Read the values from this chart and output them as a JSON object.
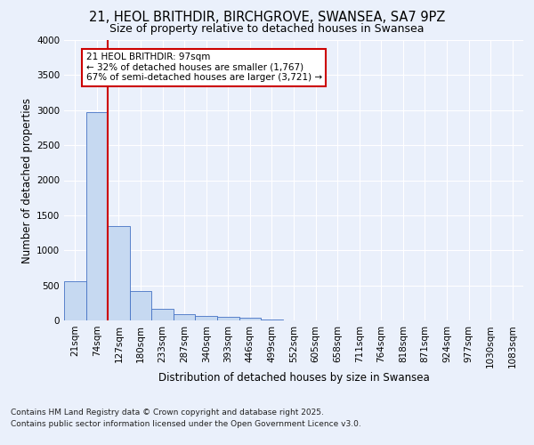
{
  "title_line1": "21, HEOL BRITHDIR, BIRCHGROVE, SWANSEA, SA7 9PZ",
  "title_line2": "Size of property relative to detached houses in Swansea",
  "xlabel": "Distribution of detached houses by size in Swansea",
  "ylabel": "Number of detached properties",
  "categories": [
    "21sqm",
    "74sqm",
    "127sqm",
    "180sqm",
    "233sqm",
    "287sqm",
    "340sqm",
    "393sqm",
    "446sqm",
    "499sqm",
    "552sqm",
    "605sqm",
    "658sqm",
    "711sqm",
    "764sqm",
    "818sqm",
    "871sqm",
    "924sqm",
    "977sqm",
    "1030sqm",
    "1083sqm"
  ],
  "bar_values": [
    560,
    2970,
    1350,
    420,
    160,
    95,
    65,
    55,
    40,
    10,
    0,
    0,
    0,
    0,
    0,
    0,
    0,
    0,
    0,
    0,
    0
  ],
  "bar_color": "#c6d9f1",
  "bar_edge_color": "#4472c4",
  "ylim": [
    0,
    4000
  ],
  "yticks": [
    0,
    500,
    1000,
    1500,
    2000,
    2500,
    3000,
    3500,
    4000
  ],
  "vline_x": 1.5,
  "vline_color": "#cc0000",
  "annotation_text": "21 HEOL BRITHDIR: 97sqm\n← 32% of detached houses are smaller (1,767)\n67% of semi-detached houses are larger (3,721) →",
  "annotation_box_color": "#cc0000",
  "annotation_bg_color": "#ffffff",
  "footer_line1": "Contains HM Land Registry data © Crown copyright and database right 2025.",
  "footer_line2": "Contains public sector information licensed under the Open Government Licence v3.0.",
  "bg_color": "#eaf0fb",
  "plot_bg_color": "#eaf0fb",
  "grid_color": "#ffffff",
  "title_fontsize": 10.5,
  "subtitle_fontsize": 9,
  "axis_label_fontsize": 8.5,
  "tick_fontsize": 7.5,
  "annotation_fontsize": 7.5,
  "footer_fontsize": 6.5
}
